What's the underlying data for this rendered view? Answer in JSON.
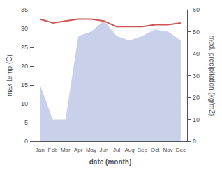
{
  "chart_data": {
    "type": "line",
    "xlabel": "date (month)",
    "ylabel": "max temp (C)",
    "y2label": "med. precipitation (kg/m2)",
    "categories": [
      "Jan",
      "Feb",
      "Mar",
      "Apr",
      "May",
      "Jun",
      "Jul",
      "Aug",
      "Sep",
      "Oct",
      "Nov",
      "Dec"
    ],
    "series": [
      {
        "type": "area",
        "axis": "y2",
        "color": "#c8d0ea",
        "values": [
          26,
          10,
          10,
          48,
          50,
          55,
          48,
          46,
          48,
          51,
          50,
          46
        ]
      },
      {
        "type": "line",
        "color": "#cc5555",
        "values": [
          32.5,
          31.5,
          32.0,
          32.5,
          32.5,
          32.0,
          30.5,
          30.5,
          30.5,
          31.0,
          31.0,
          31.5
        ]
      }
    ],
    "ylim": [
      0,
      35
    ],
    "yticks": [
      0,
      5,
      10,
      15,
      20,
      25,
      30,
      35
    ],
    "y2lim": [
      0,
      60
    ],
    "y2ticks": [
      0,
      10,
      20,
      30,
      40,
      50,
      60
    ],
    "grid": false
  }
}
